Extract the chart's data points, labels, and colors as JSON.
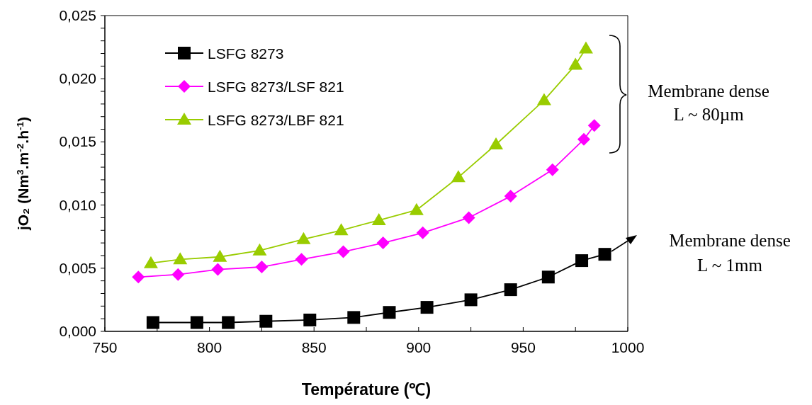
{
  "chart_data": {
    "type": "line",
    "xlabel": "Température (℃)",
    "ylabel": "jO₂ (Nm$^{3}$.m$^{-2}$.h$^{-1}$)",
    "xlim": [
      750,
      1000
    ],
    "ylim": [
      0,
      0.025
    ],
    "xticks": [
      750,
      {
        "value": 775,
        "label": null
      },
      800,
      {
        "value": 825,
        "label": null
      },
      850,
      {
        "value": 875,
        "label": null
      },
      900,
      {
        "value": 925,
        "label": null
      },
      950,
      {
        "value": 975,
        "label": null
      },
      1000
    ],
    "yticks": [
      {
        "value": 0,
        "label": "0,000"
      },
      {
        "value": 0.001,
        "label": null
      },
      {
        "value": 0.002,
        "label": null
      },
      {
        "value": 0.003,
        "label": null
      },
      {
        "value": 0.004,
        "label": null
      },
      {
        "value": 0.005,
        "label": "0,005"
      },
      {
        "value": 0.006,
        "label": null
      },
      {
        "value": 0.007,
        "label": null
      },
      {
        "value": 0.008,
        "label": null
      },
      {
        "value": 0.009,
        "label": null
      },
      {
        "value": 0.01,
        "label": "0,010"
      },
      {
        "value": 0.011,
        "label": null
      },
      {
        "value": 0.012,
        "label": null
      },
      {
        "value": 0.013,
        "label": null
      },
      {
        "value": 0.014,
        "label": null
      },
      {
        "value": 0.015,
        "label": "0,015"
      },
      {
        "value": 0.016,
        "label": null
      },
      {
        "value": 0.017,
        "label": null
      },
      {
        "value": 0.018,
        "label": null
      },
      {
        "value": 0.019,
        "label": null
      },
      {
        "value": 0.02,
        "label": "0,020"
      },
      {
        "value": 0.021,
        "label": null
      },
      {
        "value": 0.022,
        "label": null
      },
      {
        "value": 0.023,
        "label": null
      },
      {
        "value": 0.024,
        "label": null
      },
      {
        "value": 0.025,
        "label": "0,025"
      }
    ],
    "grid": false,
    "legend": "top left",
    "line_style": "solid",
    "series": [
      {
        "name": "LSFG 8273",
        "color": "#000000",
        "marker": "square",
        "x": [
          773,
          794,
          809,
          827,
          848,
          869,
          886,
          904,
          925,
          944,
          962,
          978,
          989
        ],
        "values": [
          0.0007,
          0.0007,
          0.0007,
          0.0008,
          0.0009,
          0.0011,
          0.0015,
          0.0019,
          0.0025,
          0.0033,
          0.0043,
          0.0056,
          0.0061
        ]
      },
      {
        "name": "LSFG 8273/LSF 821",
        "color": "#ff00ff",
        "marker": "diamond",
        "x": [
          766,
          785,
          804,
          825,
          844,
          864,
          883,
          902,
          924,
          944,
          964,
          979,
          984
        ],
        "values": [
          0.0043,
          0.0045,
          0.0049,
          0.0051,
          0.0057,
          0.0063,
          0.007,
          0.0078,
          0.009,
          0.0107,
          0.0128,
          0.0152,
          0.0163
        ]
      },
      {
        "name": "LSFG 8273/LBF 821",
        "color": "#99cc00",
        "marker": "triangle",
        "x": [
          772,
          786,
          805,
          824,
          845,
          863,
          881,
          899,
          919,
          937,
          960,
          975,
          980
        ],
        "values": [
          0.0054,
          0.0057,
          0.0059,
          0.0064,
          0.0073,
          0.008,
          0.0088,
          0.0096,
          0.0122,
          0.0148,
          0.0183,
          0.0211,
          0.0224
        ]
      }
    ],
    "annotations": [
      "Membrane dense\nL ~ 80µm",
      "Membrane dense\nL ~ 1mm"
    ]
  }
}
